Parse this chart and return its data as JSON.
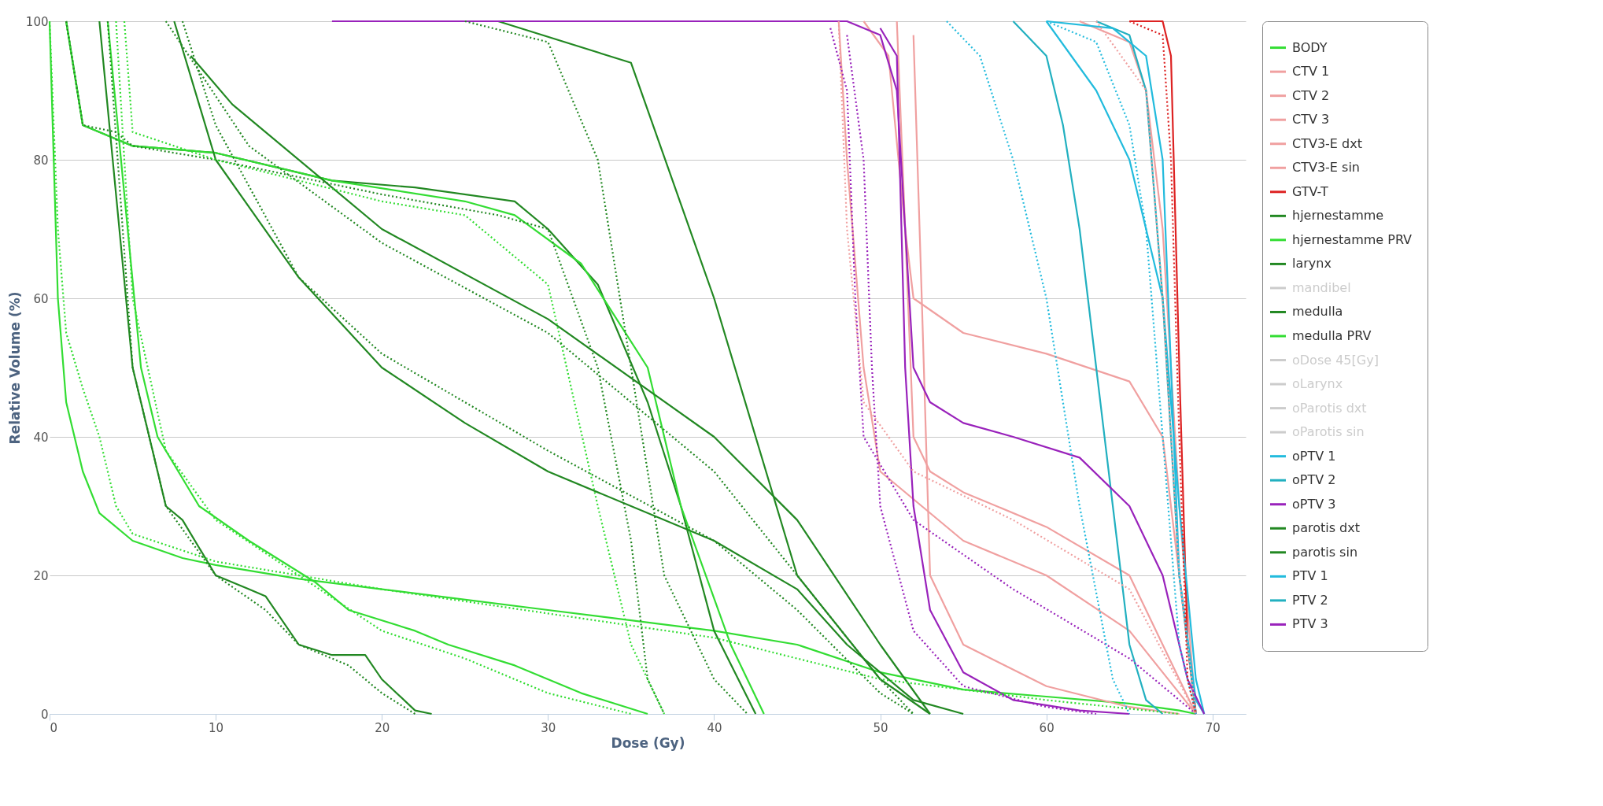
{
  "chart_data": {
    "type": "line",
    "xlabel": "Dose (Gy)",
    "ylabel": "Relative Volume (%)",
    "xlim": [
      0,
      72
    ],
    "xticks": [
      0,
      10,
      20,
      30,
      40,
      50,
      60,
      70
    ],
    "ylim": [
      0,
      100
    ],
    "yticks": [
      0,
      20,
      40,
      60,
      80,
      100
    ],
    "grid": "y",
    "legend": "top right",
    "marker": "none",
    "line_style": "solid",
    "series": [
      {
        "name": "BODY",
        "color": "#33dd33",
        "x": [
          0,
          0.5,
          1,
          2,
          3,
          5,
          8,
          10,
          15,
          20,
          30,
          40,
          45,
          50,
          55,
          60,
          65,
          68,
          69
        ],
        "values": [
          100,
          60,
          45,
          35,
          29,
          25,
          22.5,
          21.5,
          19.5,
          18,
          15,
          12,
          10,
          6,
          3.5,
          2.5,
          1.5,
          0.5,
          0
        ]
      },
      {
        "name": "CTV 1",
        "color": "#f0a0a0",
        "x": [
          49,
          50.5,
          51.5,
          52,
          55,
          60,
          65,
          67,
          68.5,
          69
        ],
        "values": [
          100,
          95,
          70,
          60,
          55,
          52,
          48,
          40,
          10,
          0
        ]
      },
      {
        "name": "CTV 2",
        "color": "#f0a0a0",
        "x": [
          51,
          52,
          53,
          55,
          60,
          65,
          68,
          69
        ],
        "values": [
          100,
          40,
          35,
          32,
          27,
          20,
          5,
          0
        ]
      },
      {
        "name": "CTV 3",
        "color": "#f0a0a0",
        "x": [
          52,
          52.5,
          53,
          55,
          60,
          65,
          68
        ],
        "values": [
          98,
          60,
          20,
          10,
          4,
          1,
          0
        ]
      },
      {
        "name": "CTV3-E dxt",
        "color": "#f0a0a0",
        "x": [
          47.5,
          48,
          49,
          50,
          55,
          60,
          65,
          68,
          69
        ],
        "values": [
          100,
          80,
          50,
          35,
          25,
          20,
          12,
          3,
          0
        ]
      },
      {
        "name": "CTV3-E sin",
        "color": "#f0a0a0",
        "x": [
          62,
          65,
          66,
          67,
          68,
          69
        ],
        "values": [
          100,
          97,
          90,
          70,
          30,
          0
        ]
      },
      {
        "name": "GTV-T",
        "color": "#dd2222",
        "x": [
          65,
          67,
          67.5,
          68,
          68.5,
          69
        ],
        "values": [
          100,
          100,
          95,
          50,
          10,
          0
        ]
      },
      {
        "name": "hjernestamme",
        "color": "#228822",
        "x": [
          1,
          2,
          5,
          10,
          17,
          22,
          28,
          30,
          33,
          36,
          38,
          40,
          42.5
        ],
        "values": [
          100,
          85,
          82,
          81,
          77,
          76,
          74,
          70,
          62,
          45,
          30,
          12,
          0
        ]
      },
      {
        "name": "hjernestamme PRV",
        "color": "#33dd33",
        "x": [
          1,
          2,
          5,
          10,
          17,
          25,
          28,
          32,
          36,
          38,
          41,
          43
        ],
        "values": [
          100,
          85,
          82,
          81,
          77,
          74,
          72,
          65,
          50,
          30,
          10,
          0
        ]
      },
      {
        "name": "larynx",
        "color": "#228822",
        "x": [
          27,
          35,
          40,
          45,
          50,
          53
        ],
        "values": [
          100,
          94,
          60,
          20,
          5,
          0
        ]
      },
      {
        "name": "mandibel",
        "color": "#cccccc"
      },
      {
        "name": "medulla",
        "color": "#228822",
        "x": [
          3,
          5,
          6,
          7,
          8,
          10,
          12,
          13,
          15,
          17,
          19,
          20,
          22,
          23
        ],
        "values": [
          100,
          50,
          40,
          30,
          28,
          20,
          18,
          17,
          10,
          8.5,
          8.5,
          5,
          0.5,
          0
        ]
      },
      {
        "name": "medulla PRV",
        "color": "#33dd33",
        "x": [
          3.5,
          5.5,
          6.5,
          9,
          12,
          16,
          18,
          22,
          24,
          28,
          32,
          36
        ],
        "values": [
          100,
          50,
          40,
          30,
          25,
          19,
          15,
          12,
          10,
          7,
          3,
          0
        ]
      },
      {
        "name": "oDose 45[Gy]",
        "color": "#cccccc"
      },
      {
        "name": "oLarynx",
        "color": "#cccccc"
      },
      {
        "name": "oParotis dxt",
        "color": "#cccccc"
      },
      {
        "name": "oParotis sin",
        "color": "#cccccc"
      },
      {
        "name": "oPTV 1",
        "color": "#22bbdd",
        "x": [
          60,
          63,
          65,
          67,
          68,
          69,
          69.5
        ],
        "values": [
          100,
          90,
          80,
          60,
          30,
          5,
          0
        ]
      },
      {
        "name": "oPTV 2",
        "color": "#22b0c0",
        "x": [
          63,
          65,
          66,
          67,
          68,
          69
        ],
        "values": [
          100,
          98,
          90,
          60,
          20,
          0
        ]
      },
      {
        "name": "oPTV 3",
        "color": "#9922bb",
        "x": [
          50,
          51,
          51.5,
          52,
          53,
          55,
          58,
          62,
          65
        ],
        "values": [
          99,
          95,
          50,
          30,
          15,
          6,
          2,
          0.5,
          0
        ]
      },
      {
        "name": "parotis dxt",
        "color": "#228822",
        "x": [
          8.5,
          11,
          20,
          30,
          40,
          45,
          50,
          53
        ],
        "values": [
          95,
          88,
          70,
          57,
          40,
          28,
          10,
          0
        ]
      },
      {
        "name": "parotis sin",
        "color": "#228822",
        "x": [
          7.5,
          10,
          15,
          20,
          25,
          30,
          40,
          45,
          48,
          52,
          55
        ],
        "values": [
          100,
          80,
          63,
          50,
          42,
          35,
          25,
          18,
          10,
          2,
          0
        ]
      },
      {
        "name": "PTV 1",
        "color": "#22bbdd",
        "x": [
          60,
          64,
          66,
          67,
          67.5,
          68,
          69,
          69.5
        ],
        "values": [
          100,
          99,
          95,
          80,
          50,
          20,
          2,
          0
        ]
      },
      {
        "name": "PTV 2",
        "color": "#22b0c0",
        "x": [
          58,
          60,
          61,
          62,
          63,
          64,
          65,
          66,
          67
        ],
        "values": [
          100,
          95,
          85,
          70,
          50,
          30,
          10,
          2,
          0
        ]
      },
      {
        "name": "PTV 3",
        "color": "#9922bb",
        "x": [
          17,
          48,
          50,
          51,
          51.5,
          52,
          53,
          55,
          58,
          62,
          65,
          67,
          68.5,
          69.5
        ],
        "values": [
          100,
          100,
          98,
          90,
          70,
          50,
          45,
          42,
          40,
          37,
          30,
          20,
          5,
          0
        ]
      },
      {
        "color": "#33dd33",
        "line_style": "dotted",
        "x": [
          0,
          0.5,
          1,
          2,
          3,
          4,
          5,
          10,
          20,
          40,
          50,
          60,
          68
        ],
        "values": [
          100,
          70,
          55,
          47,
          40,
          30,
          26,
          22,
          18,
          11,
          5,
          2,
          0
        ]
      },
      {
        "color": "#228822",
        "line_style": "dotted",
        "x": [
          3.5,
          5,
          7,
          10,
          13,
          15,
          18,
          20,
          22
        ],
        "values": [
          100,
          50,
          30,
          20,
          15,
          10,
          7,
          3,
          0
        ]
      },
      {
        "color": "#33dd33",
        "line_style": "dotted",
        "x": [
          4,
          5,
          7,
          10,
          15,
          20,
          25,
          30,
          35
        ],
        "values": [
          100,
          60,
          38,
          28,
          20,
          12,
          8,
          3,
          0
        ]
      },
      {
        "color": "#228822",
        "line_style": "dotted",
        "x": [
          1,
          2,
          4,
          5,
          10,
          20,
          27,
          30,
          33,
          35,
          36,
          37
        ],
        "values": [
          100,
          85,
          84,
          82,
          80,
          75,
          72,
          70,
          50,
          25,
          5,
          0
        ]
      },
      {
        "color": "#33dd33",
        "line_style": "dotted",
        "x": [
          4.5,
          5,
          10,
          20,
          25,
          30,
          33,
          35,
          37
        ],
        "values": [
          100,
          84,
          80,
          74,
          72,
          62,
          30,
          10,
          0
        ]
      },
      {
        "color": "#228822",
        "line_style": "dotted",
        "x": [
          8,
          10,
          15,
          20,
          30,
          40,
          45,
          50,
          52
        ],
        "values": [
          100,
          85,
          63,
          52,
          38,
          25,
          15,
          3,
          0
        ]
      },
      {
        "color": "#228822",
        "line_style": "dotted",
        "x": [
          7,
          12,
          20,
          30,
          40,
          45,
          50,
          52
        ],
        "values": [
          100,
          82,
          68,
          55,
          35,
          20,
          5,
          0
        ]
      },
      {
        "color": "#228822",
        "line_style": "dotted",
        "x": [
          25,
          30,
          33,
          35,
          37,
          40,
          42
        ],
        "values": [
          100,
          97,
          80,
          50,
          20,
          5,
          0
        ]
      },
      {
        "color": "#9922bb",
        "line_style": "dotted",
        "x": [
          47,
          48,
          48.5,
          49,
          52,
          58,
          65,
          69
        ],
        "values": [
          99,
          90,
          60,
          40,
          28,
          18,
          8,
          0
        ]
      },
      {
        "color": "#9922bb",
        "line_style": "dotted",
        "x": [
          48,
          49,
          49.5,
          50,
          52,
          55,
          60,
          63
        ],
        "values": [
          98,
          80,
          50,
          30,
          12,
          4,
          1,
          0
        ]
      },
      {
        "color": "#f0a0a0",
        "line_style": "dotted",
        "x": [
          47.5,
          48,
          49,
          52,
          58,
          65,
          69
        ],
        "values": [
          100,
          70,
          45,
          35,
          28,
          18,
          0
        ]
      },
      {
        "color": "#f0a0a0",
        "line_style": "dotted",
        "x": [
          63,
          66,
          67,
          68,
          69
        ],
        "values": [
          100,
          90,
          60,
          20,
          0
        ]
      },
      {
        "color": "#22bbdd",
        "line_style": "dotted",
        "x": [
          54,
          56,
          58,
          60,
          62,
          64,
          65
        ],
        "values": [
          100,
          95,
          80,
          60,
          30,
          5,
          0
        ]
      },
      {
        "color": "#22bbdd",
        "line_style": "dotted",
        "x": [
          60,
          63,
          65,
          66,
          67,
          68,
          69
        ],
        "values": [
          100,
          97,
          85,
          70,
          40,
          10,
          0
        ]
      },
      {
        "color": "#dd2222",
        "line_style": "dotted",
        "x": [
          65,
          67,
          67.5,
          68,
          68.5,
          69
        ],
        "values": [
          100,
          98,
          80,
          40,
          5,
          0
        ]
      }
    ]
  }
}
